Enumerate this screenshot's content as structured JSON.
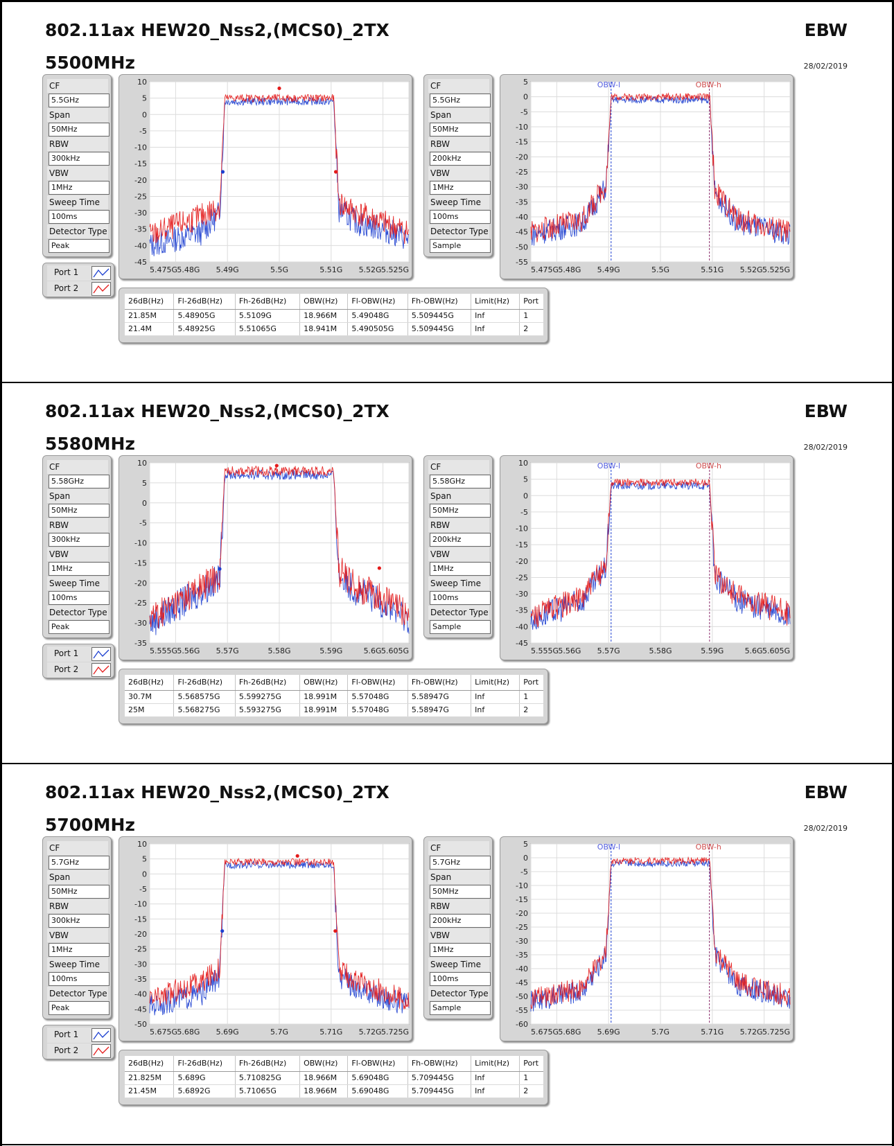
{
  "sections": [
    {
      "title": "802.11ax HEW20_Nss2,(MCS0)_2TX",
      "frequency": "5500MHz",
      "mode": "EBW",
      "date": "28/02/2019",
      "settings_left": [
        {
          "label": "CF",
          "value": "5.5GHz"
        },
        {
          "label": "Span",
          "value": "50MHz"
        },
        {
          "label": "RBW",
          "value": "300kHz"
        },
        {
          "label": "VBW",
          "value": "1MHz"
        },
        {
          "label": "Sweep Time",
          "value": "100ms"
        },
        {
          "label": "Detector Type",
          "value": "Peak"
        }
      ],
      "settings_right": [
        {
          "label": "CF",
          "value": "5.5GHz"
        },
        {
          "label": "Span",
          "value": "50MHz"
        },
        {
          "label": "RBW",
          "value": "200kHz"
        },
        {
          "label": "VBW",
          "value": "1MHz"
        },
        {
          "label": "Sweep Time",
          "value": "100ms"
        },
        {
          "label": "Detector Type",
          "value": "Sample"
        }
      ],
      "legend": [
        {
          "label": "Port 1",
          "color": "#1c3fd0"
        },
        {
          "label": "Port 2",
          "color": "#e41a1a"
        }
      ],
      "table": {
        "headers": [
          "26dB(Hz)",
          "Fl-26dB(Hz)",
          "Fh-26dB(Hz)",
          "OBW(Hz)",
          "Fl-OBW(Hz)",
          "Fh-OBW(Hz)",
          "Limit(Hz)",
          "Port"
        ],
        "rows": [
          [
            "21.85M",
            "5.48905G",
            "5.5109G",
            "18.966M",
            "5.49048G",
            "5.509445G",
            "Inf",
            "1"
          ],
          [
            "21.4M",
            "5.48925G",
            "5.51065G",
            "18.941M",
            "5.490505G",
            "5.509445G",
            "Inf",
            "2"
          ]
        ]
      }
    },
    {
      "title": "802.11ax HEW20_Nss2,(MCS0)_2TX",
      "frequency": "5580MHz",
      "mode": "EBW",
      "date": "28/02/2019",
      "settings_left": [
        {
          "label": "CF",
          "value": "5.58GHz"
        },
        {
          "label": "Span",
          "value": "50MHz"
        },
        {
          "label": "RBW",
          "value": "300kHz"
        },
        {
          "label": "VBW",
          "value": "1MHz"
        },
        {
          "label": "Sweep Time",
          "value": "100ms"
        },
        {
          "label": "Detector Type",
          "value": "Peak"
        }
      ],
      "settings_right": [
        {
          "label": "CF",
          "value": "5.58GHz"
        },
        {
          "label": "Span",
          "value": "50MHz"
        },
        {
          "label": "RBW",
          "value": "200kHz"
        },
        {
          "label": "VBW",
          "value": "1MHz"
        },
        {
          "label": "Sweep Time",
          "value": "100ms"
        },
        {
          "label": "Detector Type",
          "value": "Sample"
        }
      ],
      "legend": [
        {
          "label": "Port 1",
          "color": "#1c3fd0"
        },
        {
          "label": "Port 2",
          "color": "#e41a1a"
        }
      ],
      "table": {
        "headers": [
          "26dB(Hz)",
          "Fl-26dB(Hz)",
          "Fh-26dB(Hz)",
          "OBW(Hz)",
          "Fl-OBW(Hz)",
          "Fh-OBW(Hz)",
          "Limit(Hz)",
          "Port"
        ],
        "rows": [
          [
            "30.7M",
            "5.568575G",
            "5.599275G",
            "18.991M",
            "5.57048G",
            "5.58947G",
            "Inf",
            "1"
          ],
          [
            "25M",
            "5.568275G",
            "5.593275G",
            "18.991M",
            "5.57048G",
            "5.58947G",
            "Inf",
            "2"
          ]
        ]
      }
    },
    {
      "title": "802.11ax HEW20_Nss2,(MCS0)_2TX",
      "frequency": "5700MHz",
      "mode": "EBW",
      "date": "28/02/2019",
      "settings_left": [
        {
          "label": "CF",
          "value": "5.7GHz"
        },
        {
          "label": "Span",
          "value": "50MHz"
        },
        {
          "label": "RBW",
          "value": "300kHz"
        },
        {
          "label": "VBW",
          "value": "1MHz"
        },
        {
          "label": "Sweep Time",
          "value": "100ms"
        },
        {
          "label": "Detector Type",
          "value": "Peak"
        }
      ],
      "settings_right": [
        {
          "label": "CF",
          "value": "5.7GHz"
        },
        {
          "label": "Span",
          "value": "50MHz"
        },
        {
          "label": "RBW",
          "value": "200kHz"
        },
        {
          "label": "VBW",
          "value": "1MHz"
        },
        {
          "label": "Sweep Time",
          "value": "100ms"
        },
        {
          "label": "Detector Type",
          "value": "Sample"
        }
      ],
      "legend": [
        {
          "label": "Port 1",
          "color": "#1c3fd0"
        },
        {
          "label": "Port 2",
          "color": "#e41a1a"
        }
      ],
      "table": {
        "headers": [
          "26dB(Hz)",
          "Fl-26dB(Hz)",
          "Fh-26dB(Hz)",
          "OBW(Hz)",
          "Fl-OBW(Hz)",
          "Fh-OBW(Hz)",
          "Limit(Hz)",
          "Port"
        ],
        "rows": [
          [
            "21.825M",
            "5.689G",
            "5.710825G",
            "18.966M",
            "5.69048G",
            "5.709445G",
            "Inf",
            "1"
          ],
          [
            "21.45M",
            "5.6892G",
            "5.71065G",
            "18.966M",
            "5.69048G",
            "5.709445G",
            "Inf",
            "2"
          ]
        ]
      }
    }
  ],
  "chart_data": [
    {
      "type": "line",
      "center_GHz": 5.5,
      "x_range_GHz": [
        5.475,
        5.525
      ],
      "ylim": [
        -45,
        10
      ],
      "x_ticks": [
        "5.475G",
        "5.48G",
        "5.49G",
        "5.5G",
        "5.51G",
        "5.52G",
        "5.525G"
      ],
      "y_ticks": [
        10,
        5,
        0,
        -5,
        -10,
        -15,
        -20,
        -25,
        -30,
        -35,
        -40,
        -45
      ],
      "series": [
        {
          "name": "Port 1",
          "color": "#1c3fd0",
          "x_GHz": [
            5.475,
            5.48,
            5.485,
            5.4885,
            5.4895,
            5.5,
            5.5105,
            5.5115,
            5.515,
            5.52,
            5.525
          ],
          "y_dB": [
            -40,
            -38,
            -36,
            -30,
            4,
            4,
            4,
            -29,
            -33,
            -35,
            -38
          ]
        },
        {
          "name": "Port 2",
          "color": "#e41a1a",
          "x_GHz": [
            5.475,
            5.48,
            5.485,
            5.4885,
            5.4895,
            5.5,
            5.5105,
            5.5115,
            5.515,
            5.52,
            5.525
          ],
          "y_dB": [
            -37,
            -34,
            -31,
            -28,
            5,
            5,
            5,
            -27,
            -30,
            -33,
            -36
          ]
        }
      ],
      "markers": [
        {
          "x_GHz": 5.4891,
          "y_dB": -17.5
        },
        {
          "x_GHz": 5.5,
          "y_dB": 8
        },
        {
          "x_GHz": 5.5109,
          "y_dB": -17.5
        }
      ]
    },
    {
      "type": "line",
      "center_GHz": 5.5,
      "x_range_GHz": [
        5.475,
        5.525
      ],
      "ylim": [
        -55,
        5
      ],
      "x_ticks": [
        "5.475G",
        "5.48G",
        "5.49G",
        "5.5G",
        "5.51G",
        "5.52G",
        "5.525G"
      ],
      "y_ticks": [
        5,
        0,
        -5,
        -10,
        -15,
        -20,
        -25,
        -30,
        -35,
        -40,
        -45,
        -50,
        -55
      ],
      "annotations": [
        "OBW-l",
        "OBW-h"
      ],
      "obw_lines_GHz": [
        5.49048,
        5.509445
      ],
      "series": [
        {
          "name": "Port 1",
          "color": "#1c3fd0",
          "x_GHz": [
            5.475,
            5.485,
            5.4895,
            5.4905,
            5.5,
            5.5095,
            5.5105,
            5.515,
            5.525
          ],
          "y_dB": [
            -46,
            -42,
            -30,
            -1,
            -1,
            -1,
            -32,
            -42,
            -46
          ]
        },
        {
          "name": "Port 2",
          "color": "#e41a1a",
          "x_GHz": [
            5.475,
            5.485,
            5.4895,
            5.4905,
            5.5,
            5.5095,
            5.5105,
            5.515,
            5.525
          ],
          "y_dB": [
            -45,
            -41,
            -29,
            0,
            0,
            0,
            -31,
            -41,
            -45
          ]
        }
      ]
    },
    {
      "type": "line",
      "center_GHz": 5.58,
      "x_range_GHz": [
        5.555,
        5.605
      ],
      "ylim": [
        -35,
        10
      ],
      "x_ticks": [
        "5.555G",
        "5.56G",
        "5.57G",
        "5.58G",
        "5.59G",
        "5.6G",
        "5.605G"
      ],
      "y_ticks": [
        10,
        5,
        0,
        -5,
        -10,
        -15,
        -20,
        -25,
        -30,
        -35
      ],
      "series": [
        {
          "name": "Port 1",
          "color": "#1c3fd0",
          "x_GHz": [
            5.555,
            5.56,
            5.565,
            5.5685,
            5.5695,
            5.58,
            5.5905,
            5.5915,
            5.595,
            5.6,
            5.605
          ],
          "y_dB": [
            -30,
            -26,
            -22,
            -19,
            7,
            7,
            7,
            -18,
            -22,
            -25,
            -29
          ]
        },
        {
          "name": "Port 2",
          "color": "#e41a1a",
          "x_GHz": [
            5.555,
            5.56,
            5.565,
            5.5685,
            5.5695,
            5.58,
            5.5905,
            5.5915,
            5.595,
            5.6,
            5.605
          ],
          "y_dB": [
            -29,
            -25,
            -21,
            -18,
            8,
            8,
            8,
            -17,
            -21,
            -24,
            -28
          ]
        }
      ],
      "markers": [
        {
          "x_GHz": 5.5685,
          "y_dB": -16.5
        },
        {
          "x_GHz": 5.5795,
          "y_dB": 9.3
        },
        {
          "x_GHz": 5.5993,
          "y_dB": -16.3
        }
      ]
    },
    {
      "type": "line",
      "center_GHz": 5.58,
      "x_range_GHz": [
        5.555,
        5.605
      ],
      "ylim": [
        -45,
        10
      ],
      "x_ticks": [
        "5.555G",
        "5.56G",
        "5.57G",
        "5.58G",
        "5.59G",
        "5.6G",
        "5.605G"
      ],
      "y_ticks": [
        10,
        5,
        0,
        -5,
        -10,
        -15,
        -20,
        -25,
        -30,
        -35,
        -40,
        -45
      ],
      "annotations": [
        "OBW-l",
        "OBW-h"
      ],
      "obw_lines_GHz": [
        5.57048,
        5.58947
      ],
      "series": [
        {
          "name": "Port 1",
          "color": "#1c3fd0",
          "x_GHz": [
            5.555,
            5.565,
            5.5695,
            5.5705,
            5.58,
            5.5895,
            5.5905,
            5.595,
            5.605
          ],
          "y_dB": [
            -38,
            -32,
            -22,
            3,
            3,
            3,
            -25,
            -32,
            -37
          ]
        },
        {
          "name": "Port 2",
          "color": "#e41a1a",
          "x_GHz": [
            5.555,
            5.565,
            5.5695,
            5.5705,
            5.58,
            5.5895,
            5.5905,
            5.595,
            5.605
          ],
          "y_dB": [
            -37,
            -31,
            -21,
            4,
            4,
            4,
            -24,
            -31,
            -36
          ]
        }
      ]
    },
    {
      "type": "line",
      "center_GHz": 5.7,
      "x_range_GHz": [
        5.675,
        5.725
      ],
      "ylim": [
        -50,
        10
      ],
      "x_ticks": [
        "5.675G",
        "5.68G",
        "5.69G",
        "5.7G",
        "5.71G",
        "5.72G",
        "5.725G"
      ],
      "y_ticks": [
        10,
        5,
        0,
        -5,
        -10,
        -15,
        -20,
        -25,
        -30,
        -35,
        -40,
        -45,
        -50
      ],
      "series": [
        {
          "name": "Port 1",
          "color": "#1c3fd0",
          "x_GHz": [
            5.675,
            5.68,
            5.685,
            5.6885,
            5.6895,
            5.7,
            5.7105,
            5.7115,
            5.715,
            5.72,
            5.725
          ],
          "y_dB": [
            -44,
            -42,
            -40,
            -34,
            3,
            3,
            3,
            -34,
            -38,
            -41,
            -44
          ]
        },
        {
          "name": "Port 2",
          "color": "#e41a1a",
          "x_GHz": [
            5.675,
            5.68,
            5.685,
            5.6885,
            5.6895,
            5.7,
            5.7105,
            5.7115,
            5.715,
            5.72,
            5.725
          ],
          "y_dB": [
            -42,
            -39,
            -36,
            -31,
            4,
            4,
            4,
            -32,
            -36,
            -39,
            -42
          ]
        }
      ],
      "markers": [
        {
          "x_GHz": 5.689,
          "y_dB": -19
        },
        {
          "x_GHz": 5.7035,
          "y_dB": 6
        },
        {
          "x_GHz": 5.7108,
          "y_dB": -19
        }
      ]
    },
    {
      "type": "line",
      "center_GHz": 5.7,
      "x_range_GHz": [
        5.675,
        5.725
      ],
      "ylim": [
        -60,
        5
      ],
      "x_ticks": [
        "5.675G",
        "5.68G",
        "5.69G",
        "5.7G",
        "5.71G",
        "5.72G",
        "5.725G"
      ],
      "y_ticks": [
        5,
        0,
        -5,
        -10,
        -15,
        -20,
        -25,
        -30,
        -35,
        -40,
        -45,
        -50,
        -55,
        -60
      ],
      "annotations": [
        "OBW-l",
        "OBW-h"
      ],
      "obw_lines_GHz": [
        5.69048,
        5.709445
      ],
      "series": [
        {
          "name": "Port 1",
          "color": "#1c3fd0",
          "x_GHz": [
            5.675,
            5.685,
            5.6895,
            5.6905,
            5.7,
            5.7095,
            5.7105,
            5.715,
            5.725
          ],
          "y_dB": [
            -52,
            -48,
            -35,
            -2,
            -2,
            -2,
            -35,
            -46,
            -51
          ]
        },
        {
          "name": "Port 2",
          "color": "#e41a1a",
          "x_GHz": [
            5.675,
            5.685,
            5.6895,
            5.6905,
            5.7,
            5.7095,
            5.7105,
            5.715,
            5.725
          ],
          "y_dB": [
            -51,
            -47,
            -34,
            -1,
            -1,
            -1,
            -34,
            -45,
            -50
          ]
        }
      ]
    }
  ]
}
